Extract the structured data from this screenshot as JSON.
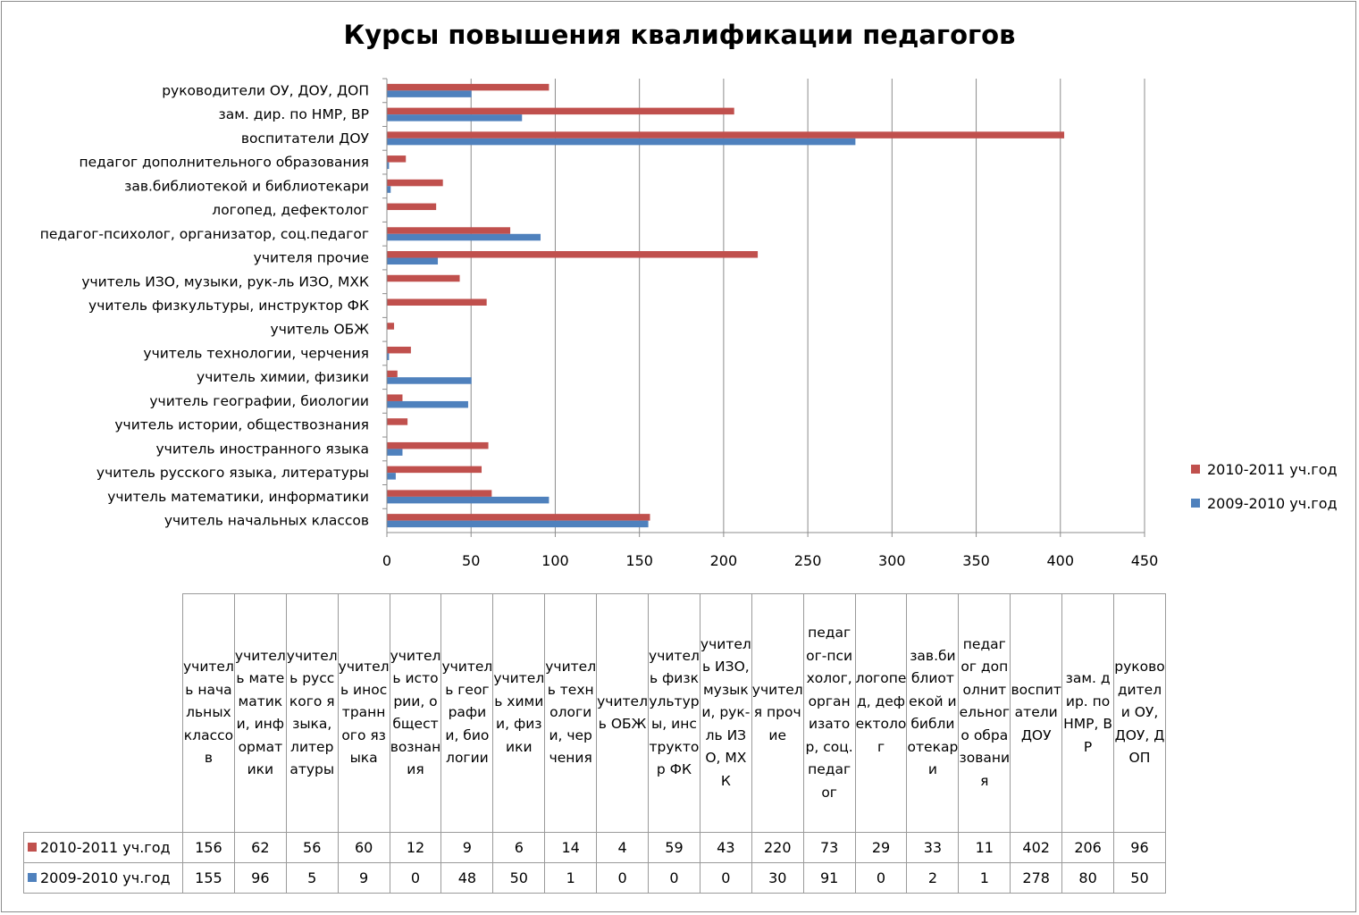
{
  "chart_data": {
    "type": "bar",
    "orientation": "horizontal",
    "title": "Курсы повышения квалификации педагогов",
    "categories": [
      "учитель начальных классов",
      "учитель математики, информатики",
      "учитель русского языка, литературы",
      "учитель иностранного языка",
      "учитель истории, обществознания",
      "учитель географии, биологии",
      "учитель химии, физики",
      "учитель технологии, черчения",
      "учитель ОБЖ",
      "учитель физкультуры, инструктор ФК",
      "учитель ИЗО, музыки, рук-ль ИЗО, МХК",
      "учителя прочие",
      "педагог-психолог, организатор, соц.педагог",
      "логопед, дефектолог",
      "зав.библиотекой и библиотекари",
      "педагог дополнительного образования",
      "воспитатели ДОУ",
      "зам. дир. по НМР, ВР",
      "руководители ОУ, ДОУ, ДОП"
    ],
    "series": [
      {
        "name": "2010-2011 уч.год",
        "color": "#c0504d",
        "values": [
          156,
          62,
          56,
          60,
          12,
          9,
          6,
          14,
          4,
          59,
          43,
          220,
          73,
          29,
          33,
          11,
          402,
          206,
          96
        ]
      },
      {
        "name": "2009-2010 уч.год",
        "color": "#4f81bd",
        "values": [
          155,
          96,
          5,
          9,
          0,
          48,
          50,
          1,
          0,
          0,
          0,
          30,
          91,
          0,
          2,
          1,
          278,
          80,
          50
        ]
      }
    ],
    "xlim": [
      0,
      450
    ],
    "xticks": [
      0,
      50,
      100,
      150,
      200,
      250,
      300,
      350,
      400,
      450
    ],
    "grid": true,
    "legend_position": "right",
    "data_table": true
  }
}
